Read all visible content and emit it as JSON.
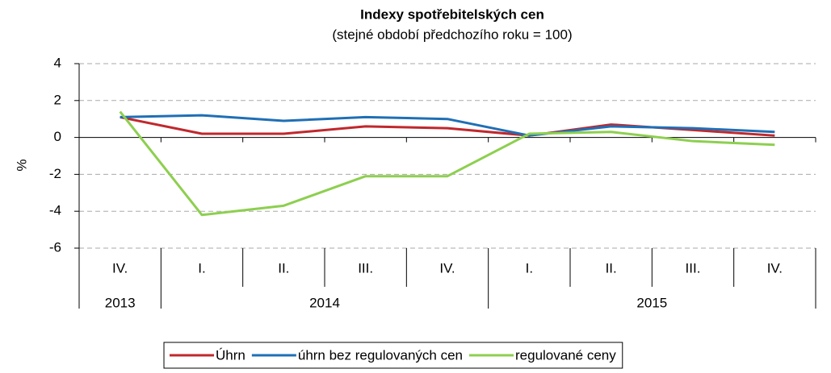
{
  "chart_data": {
    "type": "line",
    "title": "Indexy spotřebitelských  cen",
    "subtitle": "(stejné období předchozího roku = 100)",
    "y_label": "%",
    "categories": [
      "IV.",
      "I.",
      "II.",
      "III.",
      "IV.",
      "I.",
      "II.",
      "III.",
      "IV."
    ],
    "groups": [
      {
        "name": "2013",
        "categories": [
          "IV."
        ]
      },
      {
        "name": "2014",
        "categories": [
          "I.",
          "II.",
          "III.",
          "IV."
        ]
      },
      {
        "name": "2015",
        "categories": [
          "I.",
          "II.",
          "III.",
          "IV."
        ]
      }
    ],
    "series": [
      {
        "name": "Úhrn",
        "color": "#c0282d",
        "values": [
          1.1,
          0.2,
          0.2,
          0.6,
          0.5,
          0.1,
          0.7,
          0.4,
          0.1
        ]
      },
      {
        "name": "úhrn bez regulovaných cen",
        "color": "#1f6fb6",
        "values": [
          1.1,
          1.2,
          0.9,
          1.1,
          1.0,
          0.1,
          0.6,
          0.5,
          0.3
        ]
      },
      {
        "name": "regulované ceny",
        "color": "#8dcf4f",
        "values": [
          1.4,
          -4.2,
          -3.7,
          -2.1,
          -2.1,
          0.2,
          0.3,
          -0.2,
          -0.4
        ]
      }
    ],
    "ylim": [
      -6,
      4
    ],
    "yticks": [
      -6,
      -4,
      -2,
      0,
      2,
      4
    ],
    "grid": true,
    "legend": "bottom"
  }
}
